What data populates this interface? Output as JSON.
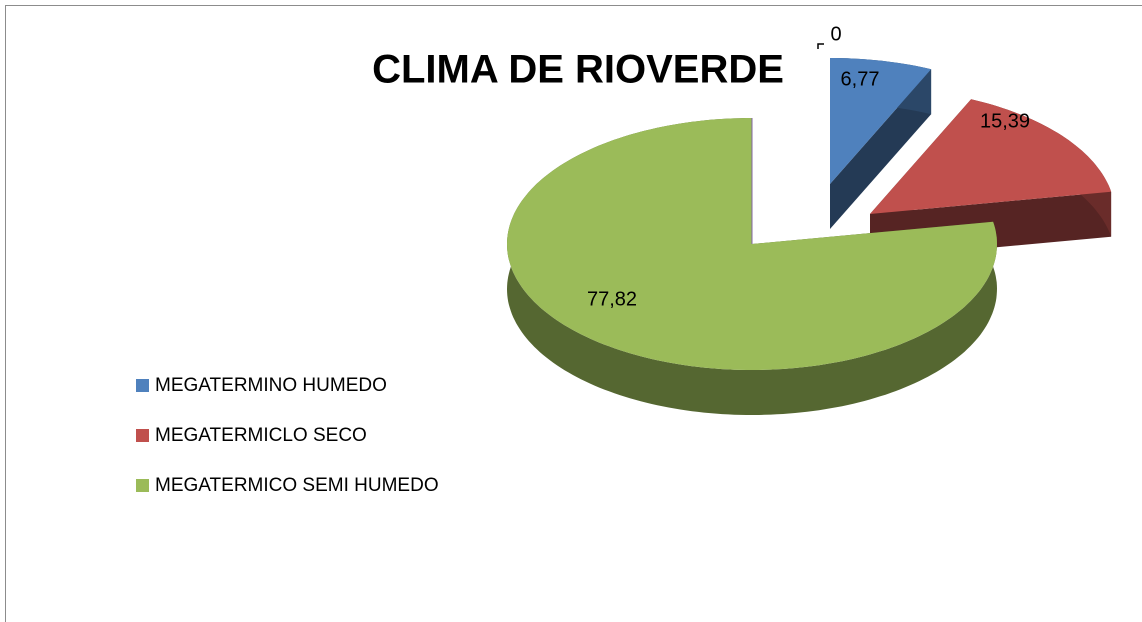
{
  "chart_data": {
    "type": "pie",
    "title": "CLIMA  DE RIOVERDE",
    "categories": [
      "MEGATERMINO HUMEDO",
      "MEGATERMICLO SECO",
      "MEGATERMICO SEMI HUMEDO",
      null
    ],
    "values": [
      6.77,
      15.39,
      77.82,
      0
    ],
    "value_labels": [
      "6,77",
      "15,39",
      "77,82",
      "0"
    ],
    "colors": [
      "#4f81bd",
      "#c0504d",
      "#9bbb59",
      "#8064a2"
    ],
    "legend": "left"
  }
}
